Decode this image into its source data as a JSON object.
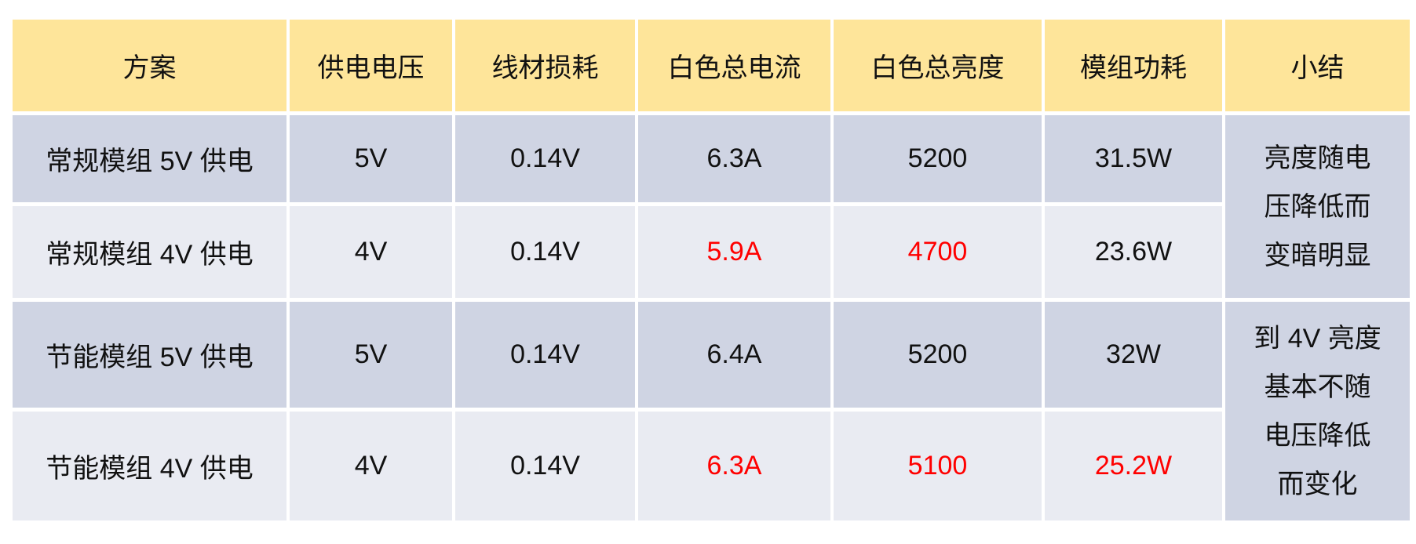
{
  "headers": [
    "方案",
    "供电电压",
    "线材损耗",
    "白色总电流",
    "白色总亮度",
    "模组功耗",
    "小结"
  ],
  "rows": [
    {
      "cells": [
        "常规模组 5V 供电",
        "5V",
        "0.14V",
        "6.3A",
        "5200",
        "31.5W"
      ],
      "red": [
        false,
        false,
        false,
        false,
        false,
        false
      ]
    },
    {
      "cells": [
        "常规模组 4V 供电",
        "4V",
        "0.14V",
        "5.9A",
        "4700",
        "23.6W"
      ],
      "red": [
        false,
        false,
        false,
        true,
        true,
        false
      ]
    },
    {
      "cells": [
        "节能模组 5V 供电",
        "5V",
        "0.14V",
        "6.4A",
        "5200",
        "32W"
      ],
      "red": [
        false,
        false,
        false,
        false,
        false,
        false
      ]
    },
    {
      "cells": [
        "节能模组 4V 供电",
        "4V",
        "0.14V",
        "6.3A",
        "5100",
        "25.2W"
      ],
      "red": [
        false,
        false,
        false,
        true,
        true,
        true
      ]
    }
  ],
  "summaries": [
    [
      "亮度随电",
      "压降低而",
      "变暗明显"
    ],
    [
      "到 4V 亮度",
      "基本不随",
      "电压降低",
      "而变化"
    ]
  ],
  "colors": {
    "header": "#FEE59A",
    "row_dark": "#CFD4E3",
    "row_light": "#E9EBF2",
    "highlight": "#FF0000"
  }
}
